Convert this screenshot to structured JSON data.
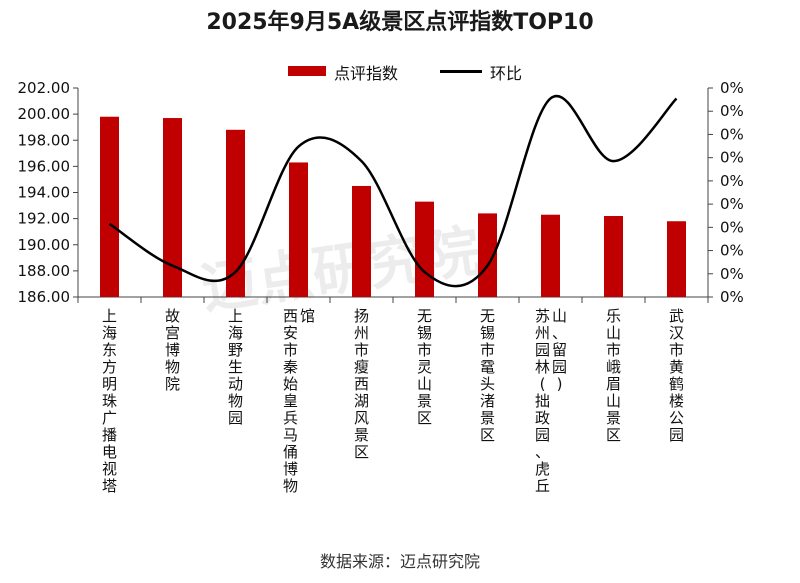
{
  "chart_data": {
    "type": "bar",
    "title": "2025年9月5A级景区点评指数TOP10",
    "categories": [
      "上海东方明珠广播电视塔",
      "故宫博物院",
      "上海野生动物园",
      "西安市秦始皇兵马俑博物馆",
      "扬州市瘦西湖风景区",
      "无锡市灵山景区",
      "无锡市鼋头渚景区",
      "苏州园林(拙政园、虎丘山、留园)",
      "乐山市峨眉山景区",
      "武汉市黄鹤楼公园"
    ],
    "series": [
      {
        "name": "点评指数",
        "type": "bar",
        "axis": "left",
        "color": "#c00000",
        "values": [
          199.8,
          199.7,
          198.8,
          196.3,
          194.5,
          193.3,
          192.4,
          192.3,
          192.2,
          191.8
        ]
      },
      {
        "name": "环比",
        "type": "line",
        "axis": "right",
        "color": "#000000",
        "values": [
          0.35,
          0.15,
          0.12,
          0.72,
          0.65,
          0.12,
          0.15,
          0.95,
          0.65,
          0.95
        ]
      }
    ],
    "ylim": [
      186.0,
      202.0
    ],
    "yticks": [
      "202.00",
      "200.00",
      "198.00",
      "196.00",
      "194.00",
      "192.00",
      "190.00",
      "188.00",
      "186.00"
    ],
    "ytick_values": [
      202,
      200,
      198,
      196,
      194,
      192,
      190,
      188,
      186
    ],
    "y2lim": [
      0,
      1
    ],
    "y2ticks": [
      "0%",
      "0%",
      "0%",
      "0%",
      "0%",
      "0%",
      "0%",
      "0%",
      "0%",
      "0%"
    ],
    "legend": [
      "点评指数",
      "环比"
    ],
    "legend_position": "top-center",
    "grid": false
  },
  "source": "数据来源：迈点研究院"
}
